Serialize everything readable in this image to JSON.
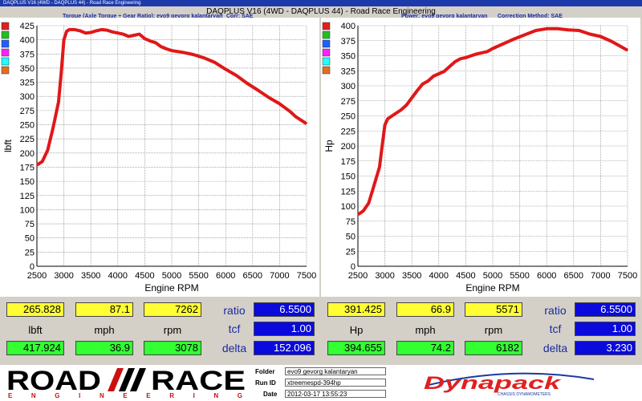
{
  "window_title": "DAQPLUS V16 (4WD - DAQPLUS 44) - Road Race Engineering",
  "main_title": "DAQPLUS V16 (4WD - DAQPLUS 44) - Road Race Engineering",
  "left_chart": {
    "subtitle_series": "Torque (Axle Torque ÷ Gear Ratio): evo9 gevorg kalantaryan",
    "subtitle_corr": "Corr: SAE",
    "ylabel": "lbft",
    "xlabel": "Engine RPM",
    "legend_colors": [
      "#e02020",
      "#20c020",
      "#2060ff",
      "#ff20ff",
      "#20ffff",
      "#e07020"
    ]
  },
  "right_chart": {
    "subtitle_series": "Power: evo9 gevorg kalantaryan",
    "subtitle_corr": "Correction Method: SAE",
    "ylabel": "Hp",
    "xlabel": "Engine RPM",
    "legend_colors": [
      "#e02020",
      "#20c020",
      "#2060ff",
      "#ff20ff",
      "#20ffff",
      "#e07020"
    ]
  },
  "chart_data": [
    {
      "type": "line",
      "title": "",
      "xlabel": "Engine RPM",
      "ylabel": "lbft",
      "xlim": [
        2500,
        7500
      ],
      "ylim": [
        0,
        425
      ],
      "xticks": [
        2500,
        3000,
        3500,
        4000,
        4500,
        5000,
        5500,
        6000,
        6500,
        7000,
        7500
      ],
      "yticks": [
        0,
        25,
        50,
        75,
        100,
        125,
        150,
        175,
        200,
        225,
        250,
        275,
        300,
        325,
        350,
        375,
        400,
        425
      ],
      "series": [
        {
          "x": [
            2520,
            2600,
            2700,
            2800,
            2900,
            2950,
            3000,
            3050,
            3100,
            3200,
            3300,
            3400,
            3500,
            3600,
            3700,
            3800,
            3900,
            4000,
            4100,
            4200,
            4300,
            4400,
            4500,
            4600,
            4700,
            4800,
            4900,
            5000,
            5200,
            5400,
            5600,
            5800,
            6000,
            6200,
            6400,
            6600,
            6800,
            7000,
            7200,
            7300,
            7400,
            7480
          ],
          "y": [
            180,
            185,
            205,
            245,
            290,
            340,
            400,
            415,
            418,
            418,
            416,
            412,
            413,
            416,
            418,
            417,
            414,
            412,
            410,
            406,
            408,
            410,
            402,
            398,
            395,
            388,
            384,
            381,
            378,
            374,
            368,
            360,
            348,
            337,
            323,
            311,
            298,
            287,
            273,
            264,
            258,
            253
          ]
        }
      ]
    },
    {
      "type": "line",
      "title": "",
      "xlabel": "Engine RPM",
      "ylabel": "Hp",
      "xlim": [
        2500,
        7500
      ],
      "ylim": [
        0,
        400
      ],
      "xticks": [
        2500,
        3000,
        3500,
        4000,
        4500,
        5000,
        5500,
        6000,
        6500,
        7000,
        7500
      ],
      "yticks": [
        0,
        25,
        50,
        75,
        100,
        125,
        150,
        175,
        200,
        225,
        250,
        275,
        300,
        325,
        350,
        375,
        400
      ],
      "series": [
        {
          "x": [
            2520,
            2600,
            2700,
            2800,
            2900,
            2950,
            3000,
            3050,
            3100,
            3200,
            3300,
            3400,
            3500,
            3600,
            3700,
            3800,
            3900,
            4000,
            4100,
            4200,
            4300,
            4400,
            4500,
            4600,
            4700,
            4800,
            4900,
            5000,
            5200,
            5400,
            5600,
            5800,
            6000,
            6200,
            6400,
            6600,
            6800,
            7000,
            7200,
            7300,
            7400,
            7480
          ],
          "y": [
            87,
            92,
            105,
            135,
            165,
            200,
            235,
            245,
            248,
            254,
            260,
            268,
            280,
            292,
            303,
            308,
            316,
            320,
            324,
            332,
            340,
            345,
            347,
            350,
            353,
            355,
            357,
            362,
            370,
            378,
            385,
            392,
            395,
            395,
            393,
            392,
            386,
            382,
            374,
            369,
            364,
            360
          ]
        }
      ]
    }
  ],
  "left_panel": {
    "row1": [
      "265.828",
      "87.1",
      "7262"
    ],
    "row2": [
      "lbft",
      "mph",
      "rpm"
    ],
    "row3": [
      "417.924",
      "36.9",
      "3078"
    ],
    "labels": [
      "ratio",
      "tcf",
      "delta"
    ],
    "values": [
      "6.5500",
      "1.00",
      "152.096"
    ]
  },
  "right_panel": {
    "row1": [
      "391.425",
      "66.9",
      "5571"
    ],
    "row2": [
      "Hp",
      "mph",
      "rpm"
    ],
    "row3": [
      "394.655",
      "74.2",
      "6182"
    ],
    "labels": [
      "ratio",
      "tcf",
      "delta"
    ],
    "values": [
      "6.5500",
      "1.00",
      "3.230"
    ]
  },
  "footer": {
    "logo_road": "ROAD",
    "logo_race": "RACE",
    "logo_sub": "E N G I N E E R I N G",
    "folder_label": "Folder",
    "folder_value": "evo9 gevorg kalantaryan",
    "runid_label": "Run ID",
    "runid_value": "xtreemespd-394hp",
    "date_label": "Date",
    "date_value": "2012-03-17 13:55:23",
    "dynapack_logo": "Dynapack",
    "dynapack_sub": "CHASSIS DYNAMOMETERS"
  }
}
